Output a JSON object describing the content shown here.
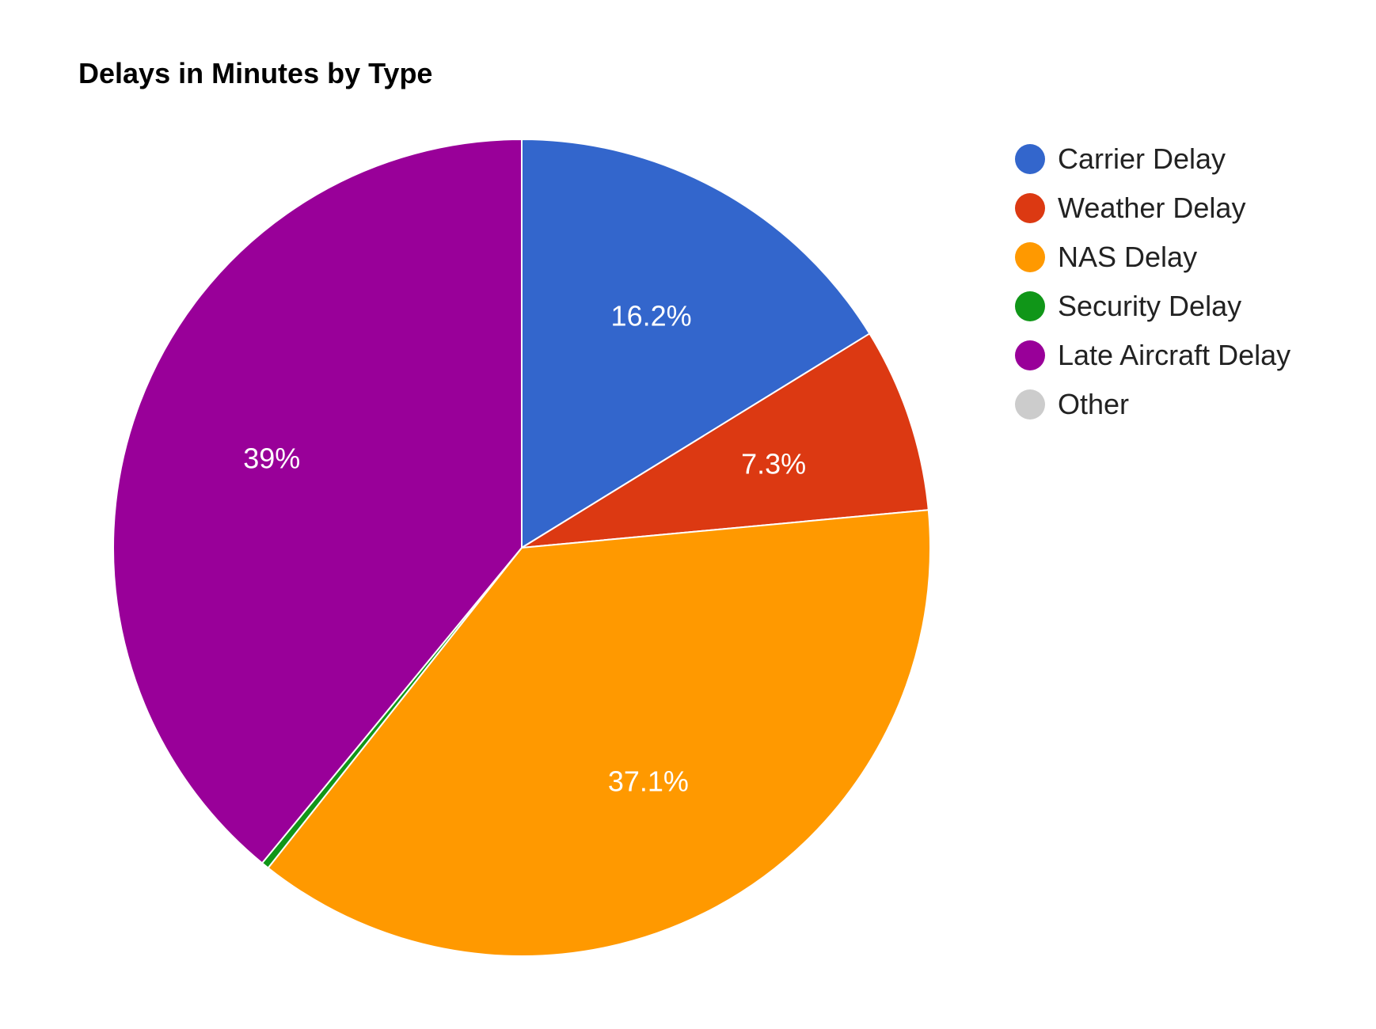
{
  "chart_data": {
    "type": "pie",
    "title": "Delays in Minutes by Type",
    "legend_position": "right",
    "slices": [
      {
        "name": "Carrier Delay",
        "value": 16.2,
        "label": "16.2%",
        "color": "#3366cc"
      },
      {
        "name": "Weather Delay",
        "value": 7.3,
        "label": "7.3%",
        "color": "#dc3912"
      },
      {
        "name": "NAS Delay",
        "value": 37.1,
        "label": "37.1%",
        "color": "#ff9900"
      },
      {
        "name": "Security Delay",
        "value": 0.3,
        "label": "",
        "color": "#109618"
      },
      {
        "name": "Late Aircraft Delay",
        "value": 39.0,
        "label": "39%",
        "color": "#990099"
      },
      {
        "name": "Other",
        "value": 0.0,
        "label": "",
        "color": "#cccccc"
      }
    ]
  }
}
